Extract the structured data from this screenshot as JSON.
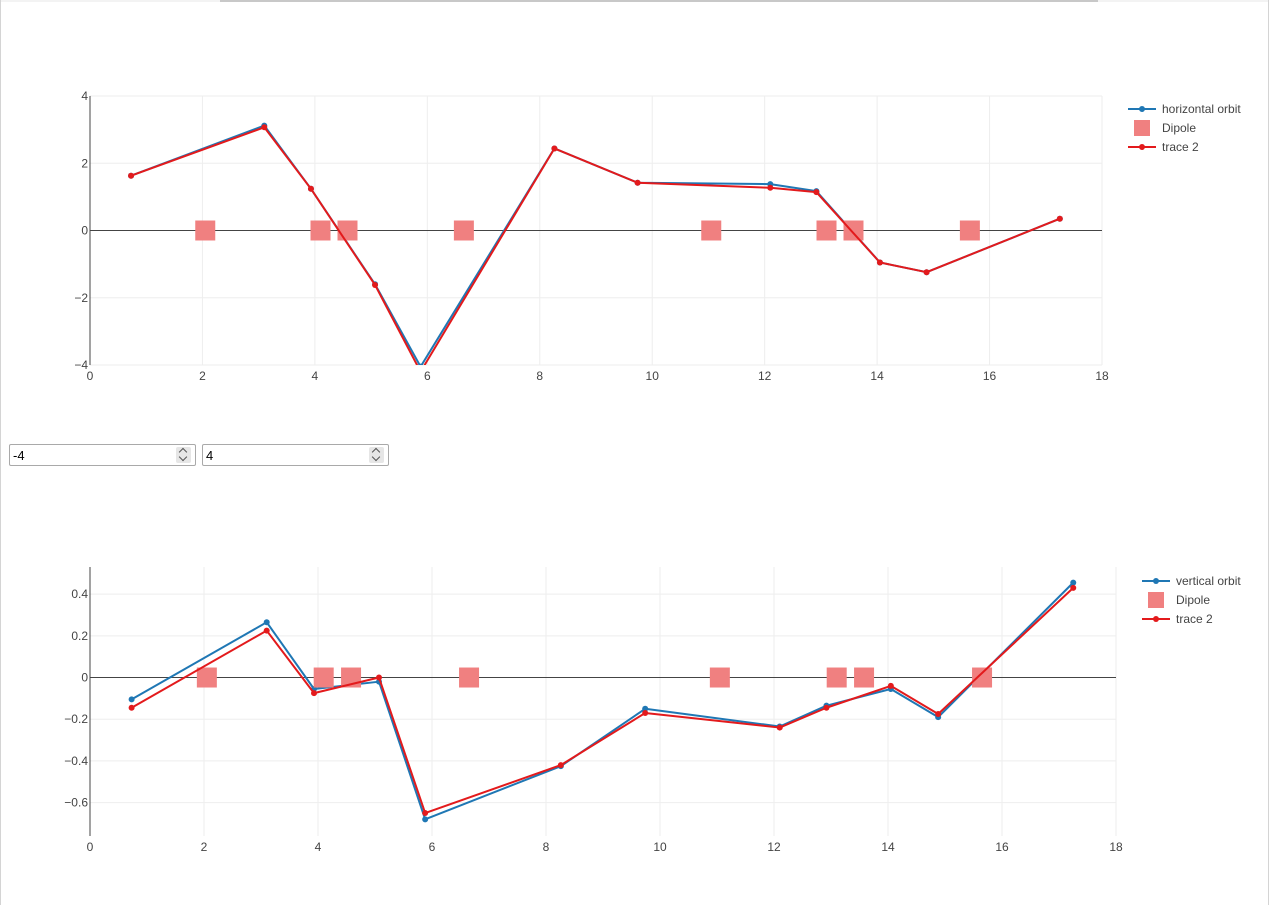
{
  "range_controls": {
    "min_value": "-4",
    "max_value": "4"
  },
  "chart_data": [
    {
      "type": "line",
      "xlim": [
        0,
        18
      ],
      "ylim": [
        -4,
        4
      ],
      "xticks": [
        0,
        2,
        4,
        6,
        8,
        10,
        12,
        14,
        16,
        18
      ],
      "yticks": [
        4,
        2,
        0,
        -2,
        -4
      ],
      "ytick_labels": [
        "4",
        "2",
        "0",
        "−2",
        "−4"
      ],
      "grid": true,
      "legend_position": "top-right",
      "series": [
        {
          "name": "horizontal orbit",
          "color": "#1f77b4",
          "mode": "lines+markers",
          "x": [
            0.73,
            3.1,
            3.93,
            5.07,
            5.88,
            8.26,
            9.74,
            12.1,
            12.92,
            14.05,
            14.88,
            17.25
          ],
          "y": [
            1.63,
            3.12,
            1.24,
            -1.6,
            -4.05,
            2.44,
            1.42,
            1.38,
            1.17,
            -0.95,
            -1.24,
            0.35
          ]
        },
        {
          "name": "Dipole",
          "color": "#f08080",
          "mode": "markers",
          "marker": "square",
          "x": [
            2.05,
            4.1,
            4.58,
            6.65,
            11.05,
            13.1,
            13.58,
            15.65
          ],
          "y": [
            0,
            0,
            0,
            0,
            0,
            0,
            0,
            0
          ]
        },
        {
          "name": "trace 2",
          "color": "#e31a1c",
          "mode": "lines+markers",
          "x": [
            0.73,
            3.1,
            3.93,
            5.07,
            5.88,
            8.26,
            9.74,
            12.1,
            12.92,
            14.05,
            14.88,
            17.25
          ],
          "y": [
            1.63,
            3.07,
            1.24,
            -1.62,
            -4.2,
            2.44,
            1.42,
            1.27,
            1.14,
            -0.95,
            -1.24,
            0.35
          ]
        }
      ]
    },
    {
      "type": "line",
      "xlim": [
        0,
        18
      ],
      "ylim": [
        -0.76,
        0.53
      ],
      "xticks": [
        0,
        2,
        4,
        6,
        8,
        10,
        12,
        14,
        16,
        18
      ],
      "yticks": [
        0.4,
        0.2,
        0,
        -0.2,
        -0.4,
        -0.6
      ],
      "ytick_labels": [
        "0.4",
        "0.2",
        "0",
        "−0.2",
        "−0.4",
        "−0.6"
      ],
      "grid": true,
      "legend_position": "top-right",
      "series": [
        {
          "name": "vertical orbit",
          "color": "#1f77b4",
          "mode": "lines+markers",
          "x": [
            0.73,
            3.1,
            3.93,
            5.07,
            5.88,
            8.26,
            9.74,
            12.1,
            12.92,
            14.05,
            14.88,
            17.25
          ],
          "y": [
            -0.105,
            0.265,
            -0.055,
            -0.02,
            -0.68,
            -0.425,
            -0.15,
            -0.235,
            -0.135,
            -0.055,
            -0.19,
            0.455
          ]
        },
        {
          "name": "Dipole",
          "color": "#f08080",
          "mode": "markers",
          "marker": "square",
          "x": [
            2.05,
            4.1,
            4.58,
            6.65,
            11.05,
            13.1,
            13.58,
            15.65
          ],
          "y": [
            0,
            0,
            0,
            0,
            0,
            0,
            0,
            0
          ]
        },
        {
          "name": "trace 2",
          "color": "#e31a1c",
          "mode": "lines+markers",
          "x": [
            0.73,
            3.1,
            3.93,
            5.07,
            5.88,
            8.26,
            9.74,
            12.1,
            12.92,
            14.05,
            14.88,
            17.25
          ],
          "y": [
            -0.145,
            0.225,
            -0.075,
            0.0,
            -0.65,
            -0.42,
            -0.17,
            -0.24,
            -0.145,
            -0.04,
            -0.175,
            0.43
          ]
        }
      ]
    }
  ]
}
